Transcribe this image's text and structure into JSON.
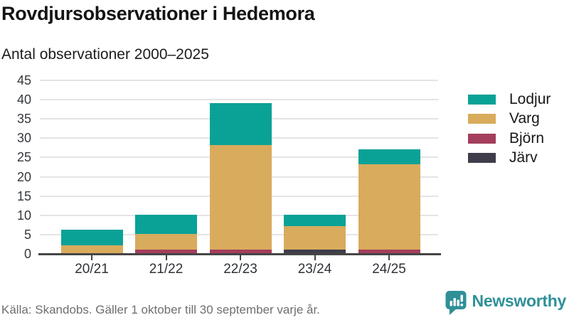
{
  "title": "Rovdjursobservationer i Hedemora",
  "subtitle": "Antal observationer 2000–2025",
  "footer": {
    "source": "Källa: Skandobs. Gäller 1 oktober till 30 september varje år."
  },
  "branding": {
    "name": "Newsworthy",
    "icon": "bar-chart-speech-bubble-icon",
    "color": "#2f9097",
    "icon_color": "#379a96"
  },
  "colors": {
    "background": "#ffffff",
    "gridline": "#e4e4e4",
    "axis": "#454545",
    "title_text": "#141414",
    "tick_text": "#35383d",
    "footer_text": "#6e6e6e"
  },
  "chart_data": {
    "type": "bar",
    "stacked": true,
    "title": "Rovdjursobservationer i Hedemora",
    "subtitle": "Antal observationer 2000–2025",
    "categories": [
      "20/21",
      "21/22",
      "22/23",
      "23/24",
      "24/25"
    ],
    "series": [
      {
        "name": "Lodjur",
        "color": "#0aa296",
        "values": [
          4,
          5,
          11,
          3,
          4
        ]
      },
      {
        "name": "Varg",
        "color": "#d9ab5c",
        "values": [
          2,
          4,
          27,
          6,
          22
        ]
      },
      {
        "name": "Björn",
        "color": "#a43e5c",
        "values": [
          0,
          1,
          1,
          0,
          1
        ]
      },
      {
        "name": "Järv",
        "color": "#3f3d4a",
        "values": [
          0,
          0,
          0,
          1,
          0
        ]
      }
    ],
    "totals": [
      6,
      10,
      39,
      10,
      27
    ],
    "stack_order_bottom_to_top": [
      "Järv",
      "Björn",
      "Varg",
      "Lodjur"
    ],
    "xlabel": "",
    "ylabel": "",
    "ylim": [
      0,
      45
    ],
    "ytick_step": 5,
    "grid": "horizontal",
    "legend_position": "right"
  }
}
